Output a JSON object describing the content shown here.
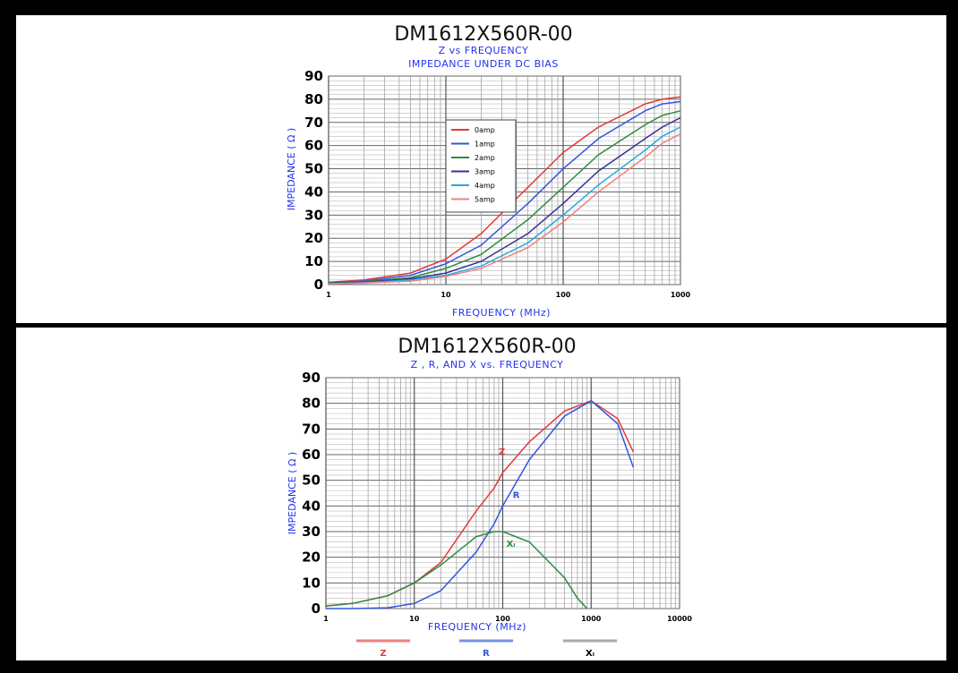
{
  "colors": {
    "title": "#111111",
    "subtitle": "#2233ee",
    "axis_label": "#2233ee",
    "grid": "#888888",
    "tick": "#000000"
  },
  "chart_data": [
    {
      "type": "line",
      "title": "DM1612X560R-00",
      "subtitle": "Z vs FREQUENCY",
      "subtitle2": "IMPEDANCE UNDER DC BIAS",
      "xlabel": "FREQUENCY (MHz)",
      "ylabel": "IMPEDANCE ( Ω )",
      "xscale": "log",
      "xlim": [
        1,
        1000
      ],
      "ylim": [
        0,
        90
      ],
      "xticks": [
        "1",
        "10",
        "100",
        "1000"
      ],
      "yticks": [
        "0",
        "10",
        "20",
        "30",
        "40",
        "50",
        "60",
        "70",
        "80",
        "90"
      ],
      "grid": true,
      "legend_position": "center-left",
      "series": [
        {
          "name": "0amp",
          "color": "#e23a3a",
          "x": [
            1,
            2,
            5,
            10,
            20,
            50,
            100,
            200,
            500,
            700,
            1000
          ],
          "y": [
            1,
            2,
            5,
            11,
            22,
            42,
            57,
            68,
            78,
            80,
            81
          ]
        },
        {
          "name": "1amp",
          "color": "#3355dd",
          "x": [
            1,
            2,
            5,
            10,
            20,
            50,
            100,
            200,
            500,
            700,
            1000
          ],
          "y": [
            0.8,
            1.5,
            4,
            9,
            17,
            35,
            50,
            63,
            75,
            78,
            79
          ]
        },
        {
          "name": "2amp",
          "color": "#2e8b3e",
          "x": [
            1,
            2,
            5,
            10,
            20,
            50,
            100,
            200,
            500,
            700,
            1000
          ],
          "y": [
            0.6,
            1.2,
            3,
            7,
            13,
            28,
            42,
            56,
            69,
            73,
            75
          ]
        },
        {
          "name": "3amp",
          "color": "#333399",
          "x": [
            1,
            2,
            5,
            10,
            20,
            50,
            100,
            200,
            500,
            700,
            1000
          ],
          "y": [
            0.5,
            1,
            2.5,
            5,
            10,
            22,
            35,
            49,
            63,
            68,
            72
          ]
        },
        {
          "name": "4amp",
          "color": "#22aadd",
          "x": [
            1,
            2,
            5,
            10,
            20,
            50,
            100,
            200,
            500,
            700,
            1000
          ],
          "y": [
            0.4,
            0.8,
            2,
            4,
            8,
            18,
            30,
            43,
            58,
            64,
            68
          ]
        },
        {
          "name": "5amp",
          "color": "#f08080",
          "x": [
            1,
            2,
            5,
            10,
            20,
            50,
            100,
            200,
            500,
            700,
            1000
          ],
          "y": [
            0.3,
            0.7,
            1.5,
            3.5,
            7,
            16,
            27,
            40,
            55,
            61,
            65
          ]
        }
      ]
    },
    {
      "type": "line",
      "title": "DM1612X560R-00",
      "subtitle": "Z , R, AND X vs. FREQUENCY",
      "xlabel": "FREQUENCY (MHz)",
      "ylabel": "IMPEDANCE ( Ω )",
      "xscale": "log",
      "xlim": [
        1,
        10000
      ],
      "ylim": [
        0,
        90
      ],
      "xticks": [
        "1",
        "10",
        "100",
        "1000",
        "10000"
      ],
      "yticks": [
        "0",
        "10",
        "20",
        "30",
        "40",
        "50",
        "60",
        "70",
        "80",
        "90"
      ],
      "grid": true,
      "legend_position": "bottom",
      "series": [
        {
          "name": "Z",
          "color": "#e23a3a",
          "x": [
            1,
            2,
            5,
            10,
            20,
            50,
            80,
            100,
            200,
            500,
            1000,
            2000,
            3000
          ],
          "y": [
            1,
            2,
            5,
            10,
            18,
            38,
            47,
            53,
            65,
            77,
            81,
            74,
            61
          ]
        },
        {
          "name": "R",
          "color": "#3355dd",
          "x": [
            1,
            2,
            5,
            10,
            20,
            50,
            80,
            100,
            200,
            500,
            1000,
            2000,
            3000
          ],
          "y": [
            0,
            0,
            0.3,
            2,
            7,
            22,
            33,
            40,
            58,
            75,
            81,
            72,
            55
          ]
        },
        {
          "name": "XL",
          "color": "#2e8b3e",
          "x": [
            1,
            2,
            5,
            10,
            20,
            50,
            80,
            100,
            200,
            500,
            700,
            900
          ],
          "y": [
            1,
            2,
            5,
            10,
            17,
            28,
            30,
            30,
            26,
            12,
            4,
            0
          ]
        }
      ],
      "annotations": [
        {
          "text": "Z",
          "x": 90,
          "y": 60,
          "color": "#e23a3a"
        },
        {
          "text": "R",
          "x": 130,
          "y": 43,
          "color": "#3355dd"
        },
        {
          "text": "Xₗ",
          "x": 110,
          "y": 24,
          "color": "#2e8b3e"
        }
      ],
      "legend_labels": [
        "Z",
        "R",
        "Xₗ"
      ]
    }
  ]
}
